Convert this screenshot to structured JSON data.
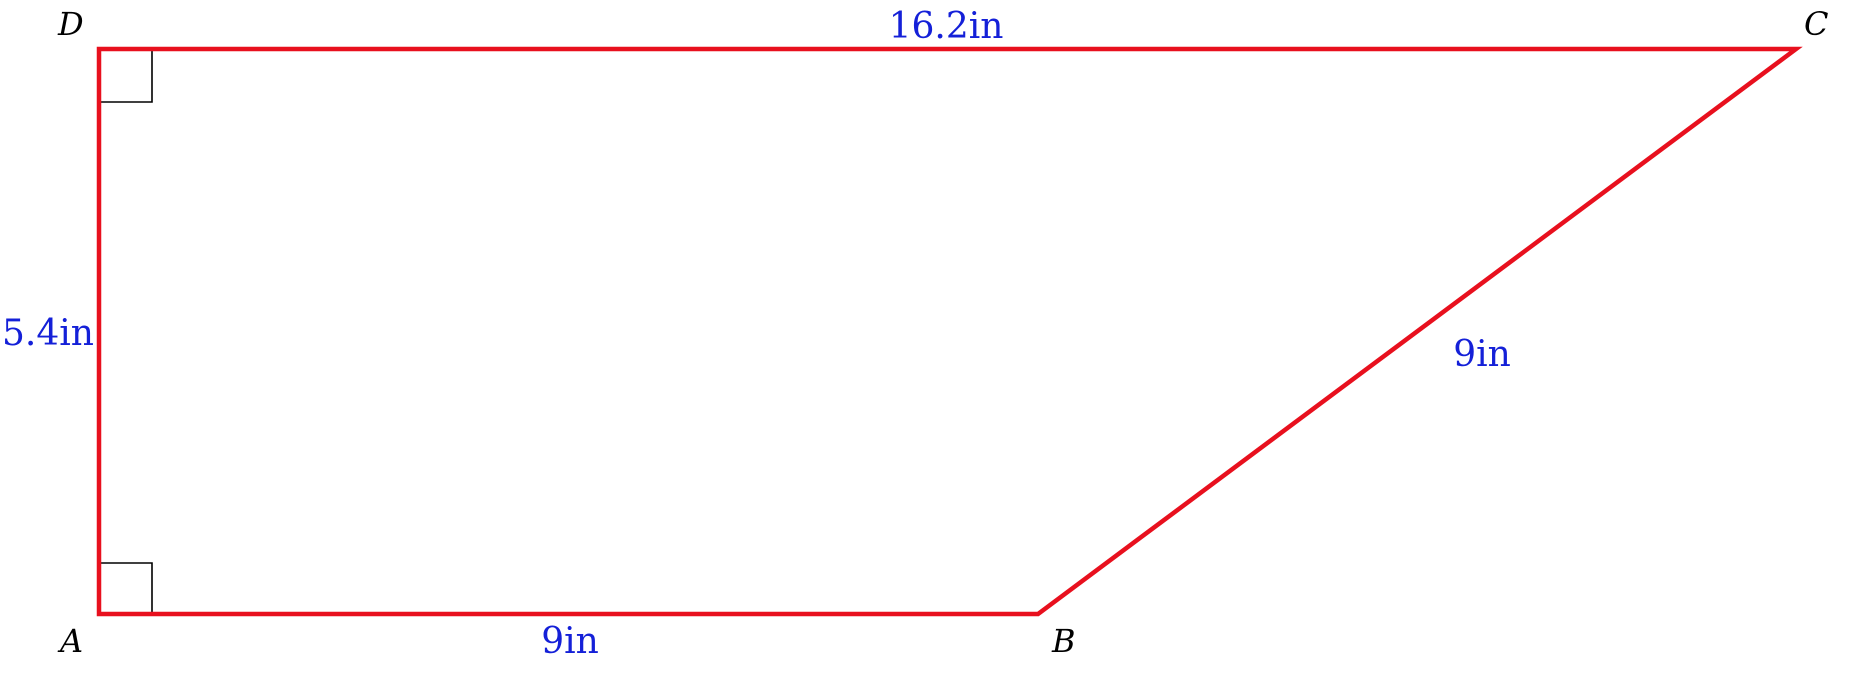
{
  "colors": {
    "edge": "#e8101e",
    "measure": "#1420d8",
    "marker": "#000000"
  },
  "vertices": {
    "A": "A",
    "B": "B",
    "C": "C",
    "D": "D"
  },
  "measurements": {
    "top": "16.2in",
    "left": "5.4in",
    "bottom": "9in",
    "slant": "9in"
  }
}
